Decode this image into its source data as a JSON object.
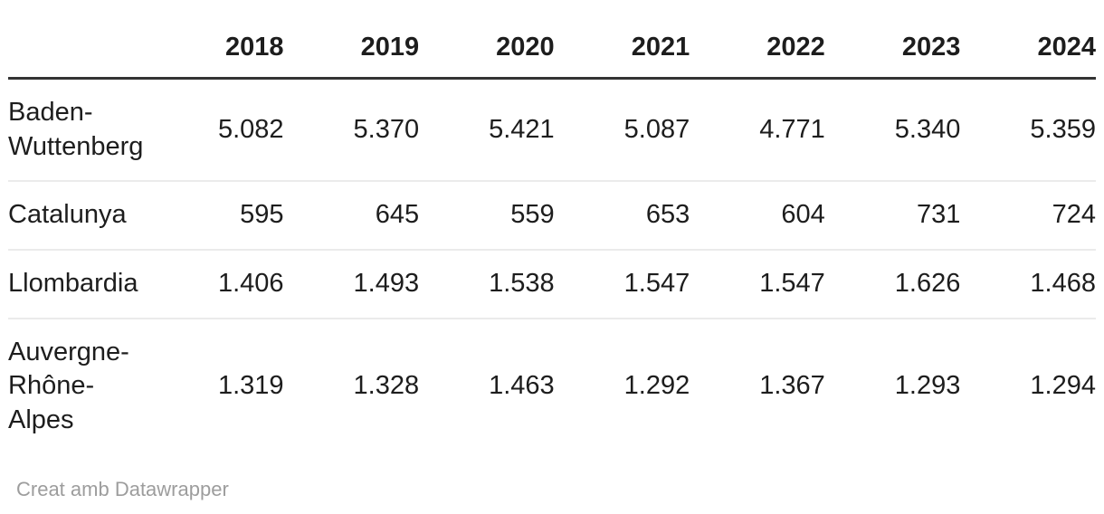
{
  "colors": {
    "background": "#ffffff",
    "text": "#1d1d1d",
    "header_rule": "#333333",
    "row_divider": "#ebebeb",
    "attribution_text": "#9d9d9d"
  },
  "footer": {
    "attribution": "Creat amb Datawrapper"
  },
  "chart_data": {
    "type": "table",
    "columns": [
      "",
      "2018",
      "2019",
      "2020",
      "2021",
      "2022",
      "2023",
      "2024"
    ],
    "number_format": "European (period as thousands separator)",
    "rows": [
      {
        "label": "Baden-Wuttenberg",
        "values": [
          "5.082",
          "5.370",
          "5.421",
          "5.087",
          "4.771",
          "5.340",
          "5.359"
        ]
      },
      {
        "label": "Catalunya",
        "values": [
          "595",
          "645",
          "559",
          "653",
          "604",
          "731",
          "724"
        ]
      },
      {
        "label": "Llombardia",
        "values": [
          "1.406",
          "1.493",
          "1.538",
          "1.547",
          "1.547",
          "1.626",
          "1.468"
        ]
      },
      {
        "label": "Auvergne-Rhône-Alpes",
        "values": [
          "1.319",
          "1.328",
          "1.463",
          "1.292",
          "1.367",
          "1.293",
          "1.294"
        ]
      }
    ],
    "layout": {
      "header_rule": "thick dark line under header",
      "row_dividers": "thin light gray lines between body rows",
      "numeric_alignment": "right",
      "label_alignment": "left"
    },
    "footer": "Creat amb Datawrapper"
  }
}
